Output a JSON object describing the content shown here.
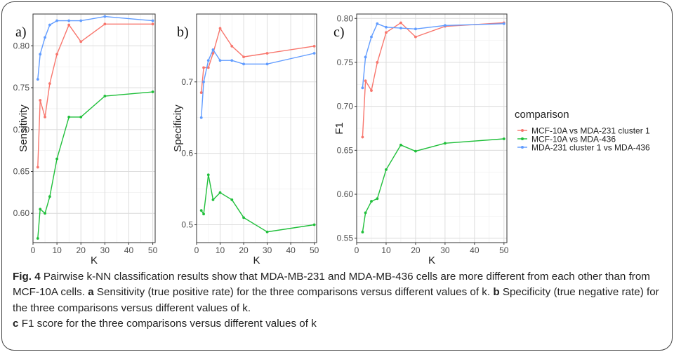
{
  "figure": {
    "legend_title": "comparison",
    "colors": {
      "MCF-10A vs MDA-231 cluster 1": "#f8766d",
      "MCF-10A vs MDA-436": "#1fbf3a",
      "MDA-231 cluster 1 vs MDA-436": "#619cff"
    },
    "caption": {
      "fig_label": "Fig. 4",
      "intro": "Pairwise k-NN classification results show that MDA-MB-231 and MDA-MB-436 cells are more different from each other than from MCF-10A cells.",
      "parts": [
        {
          "label": "a",
          "text": "Sensitivity (true positive rate) for the three comparisons versus different values of k."
        },
        {
          "label": "b",
          "text": "Specificity (true negative rate) for the three comparisons versus different values of k."
        },
        {
          "label": "c",
          "text": "F1 score for the three comparisons versus different values of k"
        }
      ]
    }
  },
  "chart_data": [
    {
      "type": "line",
      "panel": "a)",
      "xlabel": "K",
      "ylabel": "Sensitivity",
      "xlim": [
        0,
        51
      ],
      "ylim": [
        0.565,
        0.838
      ],
      "xticks": [
        0,
        10,
        20,
        30,
        40,
        50
      ],
      "yticks": [
        0.6,
        0.65,
        0.7,
        0.75,
        0.8
      ],
      "ytick_labels": [
        "0.60",
        "0.65",
        "0.70",
        "0.75",
        "0.80"
      ],
      "grid": true,
      "legend": "right",
      "x": [
        2,
        3,
        5,
        7,
        10,
        15,
        20,
        30,
        50
      ],
      "series": [
        {
          "name": "MCF-10A vs MDA-231 cluster 1",
          "values": [
            0.655,
            0.735,
            0.715,
            0.755,
            0.79,
            0.825,
            0.805,
            0.826,
            0.826
          ]
        },
        {
          "name": "MCF-10A vs MDA-436",
          "values": [
            0.57,
            0.605,
            0.6,
            0.62,
            0.665,
            0.715,
            0.715,
            0.74,
            0.745
          ]
        },
        {
          "name": "MDA-231 cluster 1 vs MDA-436",
          "values": [
            0.76,
            0.79,
            0.81,
            0.825,
            0.83,
            0.83,
            0.83,
            0.835,
            0.83
          ]
        }
      ]
    },
    {
      "type": "line",
      "panel": "b)",
      "xlabel": "K",
      "ylabel": "Specificity",
      "xlim": [
        0,
        51
      ],
      "ylim": [
        0.475,
        0.795
      ],
      "xticks": [
        0,
        10,
        20,
        30,
        40,
        50
      ],
      "yticks": [
        0.5,
        0.6,
        0.7
      ],
      "ytick_labels": [
        "0.5",
        "0.6",
        "0.7"
      ],
      "grid": true,
      "legend": "right",
      "x": [
        2,
        3,
        5,
        7,
        10,
        15,
        20,
        30,
        50
      ],
      "series": [
        {
          "name": "MCF-10A vs MDA-231 cluster 1",
          "values": [
            0.685,
            0.72,
            0.72,
            0.74,
            0.775,
            0.75,
            0.735,
            0.74,
            0.75
          ]
        },
        {
          "name": "MCF-10A vs MDA-436",
          "values": [
            0.52,
            0.515,
            0.57,
            0.535,
            0.545,
            0.535,
            0.51,
            0.49,
            0.5
          ]
        },
        {
          "name": "MDA-231 cluster 1 vs MDA-436",
          "values": [
            0.65,
            0.7,
            0.73,
            0.745,
            0.73,
            0.73,
            0.725,
            0.725,
            0.74
          ]
        }
      ]
    },
    {
      "type": "line",
      "panel": "c)",
      "xlabel": "K",
      "ylabel": "F1",
      "xlim": [
        0,
        51
      ],
      "ylim": [
        0.545,
        0.805
      ],
      "xticks": [
        0,
        10,
        20,
        30,
        40,
        50
      ],
      "yticks": [
        0.55,
        0.6,
        0.65,
        0.7,
        0.75,
        0.8
      ],
      "ytick_labels": [
        "0.55",
        "0.60",
        "0.65",
        "0.70",
        "0.75",
        "0.80"
      ],
      "grid": true,
      "legend": "right",
      "x": [
        2,
        3,
        5,
        7,
        10,
        15,
        20,
        30,
        50
      ],
      "series": [
        {
          "name": "MCF-10A vs MDA-231 cluster 1",
          "values": [
            0.665,
            0.729,
            0.718,
            0.75,
            0.784,
            0.795,
            0.779,
            0.791,
            0.795
          ]
        },
        {
          "name": "MCF-10A vs MDA-436",
          "values": [
            0.557,
            0.579,
            0.592,
            0.595,
            0.628,
            0.656,
            0.649,
            0.658,
            0.663
          ]
        },
        {
          "name": "MDA-231 cluster 1 vs MDA-436",
          "values": [
            0.721,
            0.756,
            0.779,
            0.794,
            0.79,
            0.789,
            0.788,
            0.792,
            0.794
          ]
        }
      ]
    }
  ]
}
